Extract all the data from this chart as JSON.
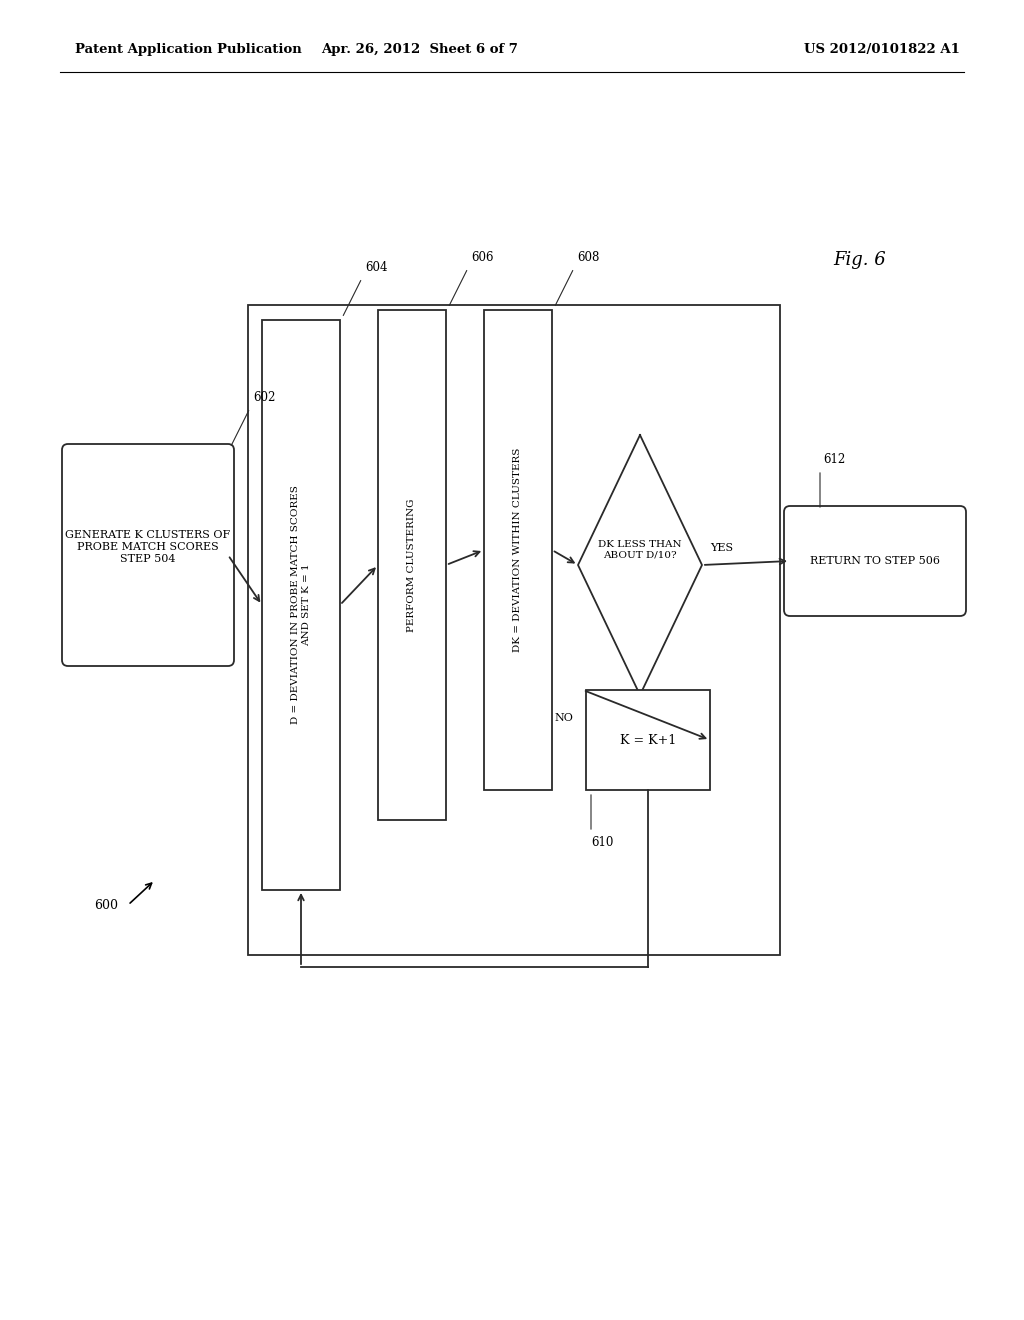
{
  "header_left": "Patent Application Publication",
  "header_center": "Apr. 26, 2012  Sheet 6 of 7",
  "header_right": "US 2012/0101822 A1",
  "fig_label": "Fig. 6",
  "bg_color": "#ffffff"
}
